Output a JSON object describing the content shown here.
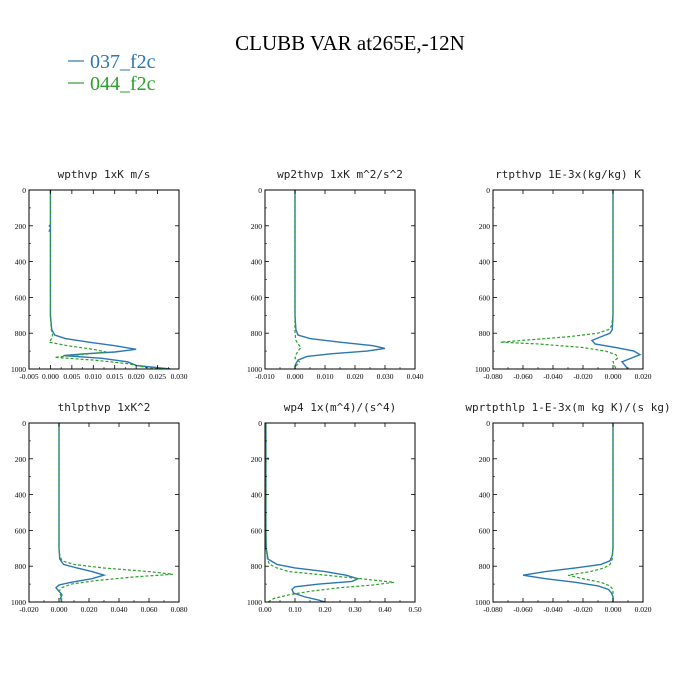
{
  "figure": {
    "title": "CLUBB VAR at265E,-12N"
  },
  "legend": [
    {
      "label": "037_f2c",
      "color": "#2a77b4"
    },
    {
      "label": "044_f2c",
      "color": "#2ca02c"
    }
  ],
  "colors": {
    "series_037": "#2a77b4",
    "series_044": "#2ca02c",
    "axes": "#000000"
  },
  "chart_data": [
    {
      "type": "line",
      "title": "wpthvp  1xK m/s",
      "xlim": [
        -0.005,
        0.03
      ],
      "ylim": [
        1000,
        0
      ],
      "xticks": [
        "-0.005",
        "0.000",
        "0.005",
        "0.010",
        "0.015",
        "0.020",
        "0.025",
        "0.030"
      ],
      "yticks": [
        "0",
        "200",
        "400",
        "600",
        "800",
        "1000"
      ],
      "series": [
        {
          "name": "037_f2c",
          "y": [
            0,
            100,
            200,
            300,
            400,
            500,
            600,
            700,
            780,
            810,
            830,
            850,
            870,
            890,
            905,
            915,
            925,
            940,
            960,
            980,
            1000
          ],
          "x": [
            0,
            0,
            0,
            0,
            0,
            0,
            0,
            0,
            0.0003,
            0.001,
            0.0035,
            0.009,
            0.015,
            0.02,
            0.015,
            0.008,
            0.003,
            0.012,
            0.018,
            0.02,
            0.028
          ]
        },
        {
          "name": "044_f2c",
          "y": [
            0,
            190,
            200,
            210,
            230,
            250,
            300,
            400,
            500,
            600,
            700,
            780,
            810,
            830,
            850,
            870,
            890,
            905,
            920,
            935,
            950,
            970,
            990,
            1000
          ],
          "x": [
            0,
            0,
            -0.0003,
            0,
            -0.0003,
            0,
            0,
            0,
            0,
            0,
            0,
            0.0002,
            0.0005,
            0.0003,
            -0.0003,
            0.004,
            0.01,
            0.013,
            0.007,
            0.001,
            0.01,
            0.018,
            0.022,
            0.027
          ]
        }
      ]
    },
    {
      "type": "line",
      "title": "wp2thvp  1xK m^2/s^2",
      "xlim": [
        -0.01,
        0.04
      ],
      "ylim": [
        1000,
        0
      ],
      "xticks": [
        "-0.010",
        "0.000",
        "0.010",
        "0.020",
        "0.030",
        "0.040"
      ],
      "yticks": [
        "0",
        "200",
        "400",
        "600",
        "800",
        "1000"
      ],
      "series": [
        {
          "name": "037_f2c",
          "y": [
            0,
            100,
            200,
            300,
            400,
            500,
            600,
            700,
            780,
            810,
            830,
            850,
            870,
            885,
            900,
            915,
            930,
            950,
            970,
            990,
            1000
          ],
          "x": [
            0,
            0,
            0,
            0,
            0,
            0,
            0,
            0,
            0.0003,
            0.001,
            0.005,
            0.015,
            0.026,
            0.03,
            0.024,
            0.012,
            0.004,
            0.001,
            0.0003,
            0,
            0
          ]
        },
        {
          "name": "044_f2c",
          "y": [
            0,
            100,
            200,
            300,
            400,
            500,
            600,
            700,
            800,
            840,
            860,
            880,
            900,
            920,
            940,
            960,
            980,
            1000
          ],
          "x": [
            0,
            0,
            0,
            0,
            0,
            0,
            0,
            0,
            0,
            0.0003,
            0.001,
            0.002,
            0.001,
            0.0003,
            0,
            0.0015,
            0.0005,
            0
          ]
        }
      ]
    },
    {
      "type": "line",
      "title": "rtpthvp  1E-3x(kg/kg) K",
      "xlim": [
        -0.08,
        0.02
      ],
      "ylim": [
        1000,
        0
      ],
      "xticks": [
        "-0.080",
        "-0.060",
        "-0.040",
        "-0.020",
        "0.000",
        "0.020"
      ],
      "yticks": [
        "0",
        "200",
        "400",
        "600",
        "800",
        "1000"
      ],
      "series": [
        {
          "name": "037_f2c",
          "y": [
            0,
            100,
            200,
            300,
            400,
            500,
            600,
            700,
            780,
            800,
            820,
            840,
            860,
            880,
            900,
            920,
            940,
            960,
            980,
            1000
          ],
          "x": [
            0,
            0,
            0,
            0,
            0,
            0,
            0,
            0,
            -0.0005,
            -0.002,
            -0.008,
            -0.014,
            -0.012,
            0.002,
            0.014,
            0.018,
            0.012,
            0.006,
            0.008,
            0.01
          ]
        },
        {
          "name": "044_f2c",
          "y": [
            0,
            100,
            200,
            300,
            400,
            500,
            600,
            700,
            760,
            780,
            800,
            820,
            840,
            850,
            860,
            880,
            900,
            920,
            940,
            960,
            980,
            1000
          ],
          "x": [
            0,
            0,
            0,
            0,
            0,
            0,
            0,
            0,
            -0.001,
            -0.003,
            -0.01,
            -0.03,
            -0.06,
            -0.075,
            -0.05,
            -0.02,
            -0.005,
            0.002,
            0.003,
            0.0,
            0.001,
            0.002
          ]
        }
      ]
    },
    {
      "type": "line",
      "title": "thlpthvp  1xK^2",
      "xlim": [
        -0.02,
        0.08
      ],
      "ylim": [
        1000,
        0
      ],
      "xticks": [
        "-0.020",
        "0.000",
        "0.020",
        "0.040",
        "0.060",
        "0.080"
      ],
      "yticks": [
        "0",
        "200",
        "400",
        "600",
        "800",
        "1000"
      ],
      "series": [
        {
          "name": "037_f2c",
          "y": [
            0,
            100,
            200,
            300,
            400,
            500,
            600,
            700,
            760,
            790,
            810,
            830,
            850,
            870,
            890,
            905,
            920,
            940,
            960,
            980,
            1000
          ],
          "x": [
            0,
            0,
            0,
            0,
            0,
            0,
            0,
            0,
            0.0005,
            0.003,
            0.012,
            0.022,
            0.03,
            0.022,
            0.008,
            0.0,
            -0.002,
            0.0,
            0.002,
            0.001,
            0.002
          ]
        },
        {
          "name": "044_f2c",
          "y": [
            0,
            100,
            200,
            300,
            400,
            500,
            600,
            700,
            740,
            770,
            790,
            810,
            830,
            845,
            860,
            880,
            900,
            920,
            940,
            960,
            980,
            1000
          ],
          "x": [
            0,
            0,
            0,
            0,
            0,
            0,
            0,
            0,
            0.0005,
            0.002,
            0.01,
            0.03,
            0.06,
            0.076,
            0.05,
            0.025,
            0.008,
            0.002,
            0.0,
            0.001,
            0.002,
            0.001
          ]
        }
      ]
    },
    {
      "type": "line",
      "title": "wp4  1x(m^4)/(s^4)",
      "xlim": [
        0.0,
        0.5
      ],
      "ylim": [
        1000,
        0
      ],
      "xticks": [
        "0.00",
        "0.10",
        "0.20",
        "0.30",
        "0.40",
        "0.50"
      ],
      "yticks": [
        "0",
        "200",
        "400",
        "600",
        "800",
        "1000"
      ],
      "series": [
        {
          "name": "037_f2c",
          "y": [
            0,
            100,
            200,
            300,
            400,
            500,
            600,
            700,
            760,
            790,
            810,
            830,
            850,
            870,
            885,
            900,
            915,
            930,
            950,
            970,
            990,
            1000
          ],
          "x": [
            0.003,
            0.003,
            0.003,
            0.003,
            0.003,
            0.003,
            0.003,
            0.004,
            0.01,
            0.04,
            0.1,
            0.2,
            0.27,
            0.31,
            0.29,
            0.18,
            0.1,
            0.09,
            0.095,
            0.13,
            0.18,
            0.2
          ]
        },
        {
          "name": "044_f2c",
          "y": [
            0,
            100,
            180,
            200,
            220,
            300,
            400,
            500,
            600,
            700,
            760,
            790,
            810,
            830,
            850,
            870,
            890,
            905,
            920,
            940,
            960,
            980,
            1000
          ],
          "x": [
            0.003,
            0.003,
            0.003,
            0.012,
            0.003,
            0.003,
            0.003,
            0.003,
            0.003,
            0.004,
            0.008,
            0.015,
            0.04,
            0.08,
            0.2,
            0.32,
            0.43,
            0.36,
            0.25,
            0.15,
            0.08,
            0.03,
            0.01
          ]
        }
      ]
    },
    {
      "type": "line",
      "title": "wprtpthlp  1-E-3x(m kg K)/(s kg)",
      "xlim": [
        -0.08,
        0.02
      ],
      "ylim": [
        1000,
        0
      ],
      "xticks": [
        "-0.080",
        "-0.060",
        "-0.040",
        "-0.020",
        "0.000",
        "0.020"
      ],
      "yticks": [
        "0",
        "200",
        "400",
        "600",
        "800",
        "1000"
      ],
      "series": [
        {
          "name": "037_f2c",
          "y": [
            0,
            100,
            200,
            300,
            400,
            500,
            600,
            700,
            740,
            770,
            790,
            810,
            830,
            850,
            870,
            890,
            910,
            930,
            950,
            970,
            1000
          ],
          "x": [
            0,
            0,
            0,
            0,
            0,
            0,
            0,
            0,
            -0.0005,
            -0.002,
            -0.008,
            -0.025,
            -0.045,
            -0.06,
            -0.045,
            -0.025,
            -0.01,
            -0.003,
            -0.001,
            0,
            0
          ]
        },
        {
          "name": "044_f2c",
          "y": [
            0,
            100,
            200,
            300,
            400,
            500,
            600,
            700,
            760,
            790,
            810,
            830,
            850,
            870,
            890,
            910,
            930,
            950,
            970,
            1000
          ],
          "x": [
            0,
            0,
            0,
            0,
            0,
            0,
            0,
            0,
            -0.0005,
            -0.002,
            -0.006,
            -0.015,
            -0.03,
            -0.02,
            -0.008,
            -0.002,
            0,
            0,
            0,
            0
          ]
        }
      ]
    }
  ]
}
